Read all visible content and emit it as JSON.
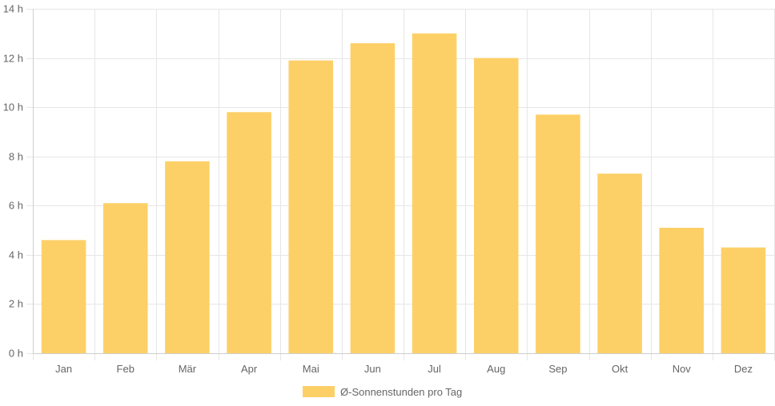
{
  "chart_data": {
    "type": "bar",
    "categories": [
      "Jan",
      "Feb",
      "Mär",
      "Apr",
      "Mai",
      "Jun",
      "Jul",
      "Aug",
      "Sep",
      "Okt",
      "Nov",
      "Dez"
    ],
    "series": [
      {
        "name": "Ø-Sonnenstunden pro Tag",
        "values": [
          4.6,
          6.1,
          7.8,
          9.8,
          11.9,
          12.6,
          13.0,
          12.0,
          9.7,
          7.3,
          5.1,
          4.3
        ],
        "color": "#fdd067"
      }
    ],
    "y_ticks": [
      "0 h",
      "2 h",
      "4 h",
      "6 h",
      "8 h",
      "10 h",
      "12 h",
      "14 h"
    ],
    "ylim": [
      0,
      14
    ],
    "grid": true,
    "legend_position": "bottom"
  }
}
